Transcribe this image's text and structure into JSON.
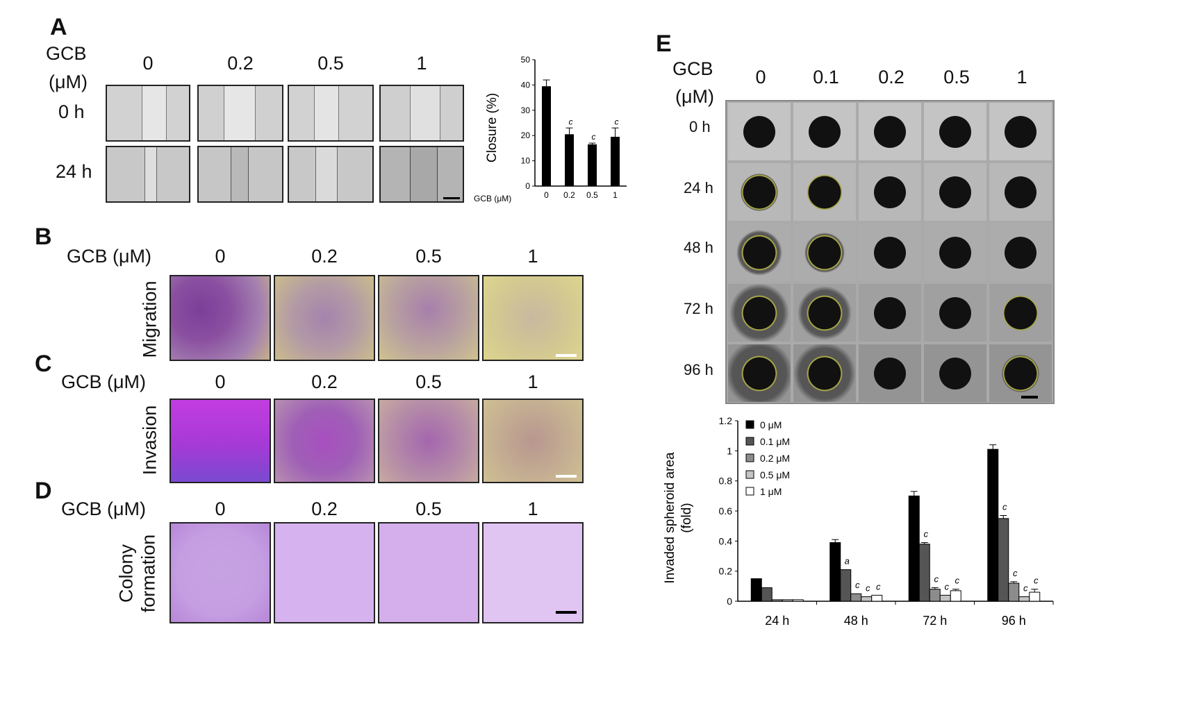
{
  "panels": {
    "A": {
      "letter": "A",
      "gcb_label_1": "GCB",
      "gcb_label_2": "(μM)",
      "concentrations": [
        "0",
        "0.2",
        "0.5",
        "1"
      ],
      "rows": [
        "0 h",
        "24 h"
      ]
    },
    "B": {
      "letter": "B",
      "gcb_label": "GCB (μM)",
      "concentrations": [
        "0",
        "0.2",
        "0.5",
        "1"
      ],
      "side_label": "Migration"
    },
    "C": {
      "letter": "C",
      "gcb_label": "GCB (μM)",
      "concentrations": [
        "0",
        "0.2",
        "0.5",
        "1"
      ],
      "side_label": "Invasion"
    },
    "D": {
      "letter": "D",
      "gcb_label": "GCB (μM)",
      "concentrations": [
        "0",
        "0.2",
        "0.5",
        "1"
      ],
      "side_label_1": "Colony",
      "side_label_2": "formation"
    },
    "E": {
      "letter": "E",
      "gcb_label_1": "GCB",
      "gcb_label_2": "(μM)",
      "concentrations": [
        "0",
        "0.1",
        "0.2",
        "0.5",
        "1"
      ],
      "rows": [
        "0 h",
        "24 h",
        "48 h",
        "72 h",
        "96 h"
      ]
    }
  },
  "colors": {
    "migration_stain": "#8a4fa0",
    "invasion_stain": "#b240d8",
    "colony_stain": "#c9a3e6",
    "bar_black": "#000000"
  },
  "chart_data": [
    {
      "id": "closure",
      "type": "bar",
      "ylabel": "Closure (%)",
      "xaxis_title": "GCB (μM)",
      "categories": [
        "0",
        "0.2",
        "0.5",
        "1"
      ],
      "values": [
        39.5,
        20.5,
        16.5,
        19.5
      ],
      "errors": [
        2.5,
        2.5,
        0.5,
        3.5
      ],
      "annotations": [
        "",
        "c",
        "c",
        "c"
      ],
      "ylim": [
        0,
        50
      ],
      "yticks": [
        "0",
        "10",
        "20",
        "30",
        "40",
        "50"
      ]
    },
    {
      "id": "spheroid",
      "type": "bar",
      "ylabel_1": "Invaded spheroid area",
      "ylabel_2": "(fold)",
      "categories": [
        "24 h",
        "48 h",
        "72 h",
        "96 h"
      ],
      "ylim": [
        0,
        1.2
      ],
      "yticks": [
        "0",
        "0.2",
        "0.4",
        "0.6",
        "0.8",
        "1",
        "1.2"
      ],
      "legend_position": "top-left",
      "series": [
        {
          "name": "0 μM",
          "color": "#000000",
          "values": [
            0.15,
            0.39,
            0.7,
            1.01
          ],
          "errors": [
            0,
            0.02,
            0.03,
            0.03
          ],
          "annotations": [
            "",
            "",
            "",
            ""
          ]
        },
        {
          "name": "0.1 μM",
          "color": "#555555",
          "values": [
            0.09,
            0.21,
            0.38,
            0.55
          ],
          "errors": [
            0,
            0,
            0.01,
            0.02
          ],
          "annotations": [
            "",
            "a",
            "c",
            "c"
          ]
        },
        {
          "name": "0.2 μM",
          "color": "#8c8c8c",
          "values": [
            0.01,
            0.05,
            0.08,
            0.12
          ],
          "errors": [
            0,
            0,
            0.01,
            0.01
          ],
          "annotations": [
            "",
            "c",
            "c",
            "c"
          ]
        },
        {
          "name": "0.5 μM",
          "color": "#c4c4c4",
          "values": [
            0.01,
            0.03,
            0.04,
            0.03
          ],
          "errors": [
            0,
            0,
            0,
            0
          ],
          "annotations": [
            "",
            "c",
            "c",
            "c"
          ]
        },
        {
          "name": "1 μM",
          "color": "#ffffff",
          "values": [
            0.01,
            0.04,
            0.07,
            0.06
          ],
          "errors": [
            0,
            0,
            0.01,
            0.02
          ],
          "annotations": [
            "",
            "c",
            "c",
            "c"
          ]
        }
      ]
    }
  ]
}
